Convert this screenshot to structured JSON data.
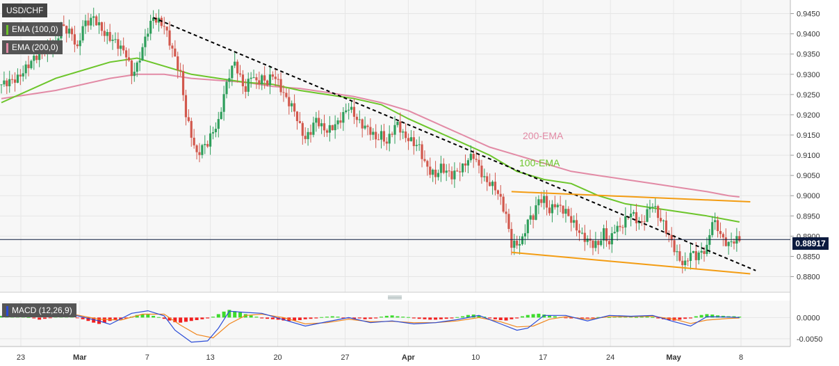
{
  "chart_data": {
    "type": "candlestick",
    "symbol": "USD/CHF",
    "last_price": "0.88917",
    "x_tick_labels": [
      "23",
      "Mar",
      "7",
      "13",
      "20",
      "27",
      "Apr",
      "10",
      "17",
      "24",
      "May",
      "8"
    ],
    "y_ticks": [
      "0.9450",
      "0.9400",
      "0.9350",
      "0.9300",
      "0.9250",
      "0.9200",
      "0.9150",
      "0.9100",
      "0.9050",
      "0.9000",
      "0.8950",
      "0.8900",
      "0.8850",
      "0.8800"
    ],
    "ylim": [
      0.877,
      0.9475
    ],
    "grid": true,
    "indicators": {
      "ema100": {
        "legend": "EMA (100,0)",
        "label": "100-EMA",
        "color": "#6cc52a"
      },
      "ema200": {
        "legend": "EMA (200,0)",
        "label": "200-EMA",
        "color": "#e28aa5"
      }
    },
    "price_path": [
      [
        0,
        0.9275
      ],
      [
        3,
        0.929
      ],
      [
        6,
        0.934
      ],
      [
        8,
        0.936
      ],
      [
        10,
        0.9375
      ],
      [
        11,
        0.942
      ],
      [
        13,
        0.94
      ],
      [
        14,
        0.936
      ],
      [
        15,
        0.942
      ],
      [
        17,
        0.944
      ],
      [
        19,
        0.94
      ],
      [
        21,
        0.938
      ],
      [
        23,
        0.935
      ],
      [
        24,
        0.93
      ],
      [
        25,
        0.932
      ],
      [
        27,
        0.941
      ],
      [
        28,
        0.944
      ],
      [
        30,
        0.942
      ],
      [
        31,
        0.938
      ],
      [
        33,
        0.93
      ],
      [
        34,
        0.92
      ],
      [
        35,
        0.915
      ],
      [
        36,
        0.91
      ],
      [
        37,
        0.912
      ],
      [
        38,
        0.913
      ],
      [
        39,
        0.916
      ],
      [
        40,
        0.918
      ],
      [
        41,
        0.925
      ],
      [
        42,
        0.93
      ],
      [
        43,
        0.933
      ],
      [
        44,
        0.929
      ],
      [
        45,
        0.926
      ],
      [
        46,
        0.93
      ],
      [
        47,
        0.928
      ],
      [
        48,
        0.929
      ],
      [
        49,
        0.928
      ],
      [
        50,
        0.93
      ],
      [
        51,
        0.928
      ],
      [
        52,
        0.925
      ],
      [
        53,
        0.923
      ],
      [
        54,
        0.921
      ],
      [
        55,
        0.917
      ],
      [
        56,
        0.914
      ],
      [
        57,
        0.916
      ],
      [
        58,
        0.919
      ],
      [
        59,
        0.917
      ],
      [
        60,
        0.916
      ],
      [
        61,
        0.917
      ],
      [
        62,
        0.918
      ],
      [
        63,
        0.92
      ],
      [
        64,
        0.922
      ],
      [
        65,
        0.92
      ],
      [
        66,
        0.918
      ],
      [
        67,
        0.917
      ],
      [
        68,
        0.916
      ],
      [
        69,
        0.914
      ],
      [
        70,
        0.915
      ],
      [
        71,
        0.913
      ],
      [
        72,
        0.916
      ],
      [
        73,
        0.918
      ],
      [
        74,
        0.915
      ],
      [
        75,
        0.914
      ],
      [
        76,
        0.913
      ],
      [
        77,
        0.912
      ],
      [
        78,
        0.908
      ],
      [
        79,
        0.906
      ],
      [
        80,
        0.905
      ],
      [
        81,
        0.907
      ],
      [
        82,
        0.906
      ],
      [
        83,
        0.905
      ],
      [
        84,
        0.906
      ],
      [
        85,
        0.907
      ],
      [
        86,
        0.909
      ],
      [
        87,
        0.91
      ],
      [
        88,
        0.907
      ],
      [
        89,
        0.904
      ],
      [
        90,
        0.903
      ],
      [
        91,
        0.902
      ],
      [
        92,
        0.899
      ],
      [
        93,
        0.895
      ],
      [
        94,
        0.888
      ],
      [
        95,
        0.888
      ],
      [
        96,
        0.889
      ],
      [
        97,
        0.894
      ],
      [
        98,
        0.895
      ],
      [
        99,
        0.899
      ],
      [
        100,
        0.899
      ],
      [
        101,
        0.896
      ],
      [
        102,
        0.898
      ],
      [
        103,
        0.897
      ],
      [
        104,
        0.896
      ],
      [
        105,
        0.894
      ],
      [
        106,
        0.892
      ],
      [
        107,
        0.89
      ],
      [
        108,
        0.889
      ],
      [
        109,
        0.888
      ],
      [
        110,
        0.888
      ],
      [
        111,
        0.891
      ],
      [
        112,
        0.888
      ],
      [
        113,
        0.892
      ],
      [
        114,
        0.892
      ],
      [
        115,
        0.894
      ],
      [
        116,
        0.896
      ],
      [
        117,
        0.894
      ],
      [
        118,
        0.893
      ],
      [
        119,
        0.896
      ],
      [
        120,
        0.898
      ],
      [
        121,
        0.895
      ],
      [
        122,
        0.893
      ],
      [
        123,
        0.89
      ],
      [
        124,
        0.887
      ],
      [
        125,
        0.884
      ],
      [
        126,
        0.883
      ],
      [
        127,
        0.886
      ],
      [
        128,
        0.885
      ],
      [
        129,
        0.886
      ],
      [
        130,
        0.887
      ],
      [
        131,
        0.894
      ],
      [
        132,
        0.892
      ],
      [
        133,
        0.889
      ],
      [
        134,
        0.888
      ],
      [
        135,
        0.889
      ],
      [
        136,
        0.8892
      ]
    ],
    "ema100_path": [
      [
        0,
        0.923
      ],
      [
        10,
        0.929
      ],
      [
        20,
        0.933
      ],
      [
        25,
        0.934
      ],
      [
        30,
        0.932
      ],
      [
        35,
        0.93
      ],
      [
        40,
        0.929
      ],
      [
        45,
        0.928
      ],
      [
        50,
        0.9275
      ],
      [
        55,
        0.926
      ],
      [
        60,
        0.925
      ],
      [
        65,
        0.924
      ],
      [
        70,
        0.9225
      ],
      [
        75,
        0.919
      ],
      [
        80,
        0.916
      ],
      [
        85,
        0.913
      ],
      [
        90,
        0.91
      ],
      [
        95,
        0.906
      ],
      [
        100,
        0.904
      ],
      [
        105,
        0.903
      ],
      [
        110,
        0.9
      ],
      [
        115,
        0.898
      ],
      [
        120,
        0.897
      ],
      [
        125,
        0.896
      ],
      [
        130,
        0.895
      ],
      [
        134,
        0.894
      ],
      [
        136,
        0.8935
      ]
    ],
    "ema200_path": [
      [
        0,
        0.924
      ],
      [
        10,
        0.926
      ],
      [
        20,
        0.929
      ],
      [
        25,
        0.93
      ],
      [
        30,
        0.93
      ],
      [
        35,
        0.929
      ],
      [
        40,
        0.9285
      ],
      [
        45,
        0.928
      ],
      [
        50,
        0.927
      ],
      [
        55,
        0.9265
      ],
      [
        60,
        0.9255
      ],
      [
        65,
        0.9245
      ],
      [
        70,
        0.923
      ],
      [
        75,
        0.921
      ],
      [
        80,
        0.918
      ],
      [
        85,
        0.915
      ],
      [
        90,
        0.912
      ],
      [
        95,
        0.91
      ],
      [
        100,
        0.908
      ],
      [
        105,
        0.906
      ],
      [
        110,
        0.905
      ],
      [
        115,
        0.904
      ],
      [
        120,
        0.903
      ],
      [
        125,
        0.902
      ],
      [
        130,
        0.901
      ],
      [
        134,
        0.9
      ],
      [
        136,
        0.8997
      ]
    ],
    "trendlines": [
      {
        "style": "dashed",
        "color": "#000000",
        "from": [
          28,
          0.944
        ],
        "to": [
          139,
          0.8815
        ]
      },
      {
        "style": "solid",
        "color": "#f39c12",
        "from": [
          94,
          0.901
        ],
        "to": [
          138,
          0.8985
        ]
      },
      {
        "style": "solid",
        "color": "#f39c12",
        "from": [
          94,
          0.886
        ],
        "to": [
          138,
          0.8807
        ]
      }
    ],
    "macd": {
      "label": "MACD (12,26,9)",
      "y_ticks": [
        "0.0000",
        "-0.0050"
      ],
      "ylim": [
        -0.0065,
        0.0035
      ],
      "histogram": [
        0.0004,
        0.0008,
        0.001,
        0.0006,
        0.0003,
        0.0001,
        -0.0002,
        -0.0005,
        -0.0003,
        -0.0001,
        0.0002,
        0.0004,
        0.0006,
        0.0002,
        -0.0001,
        -0.0004,
        -0.0008,
        -0.0012,
        -0.0015,
        -0.0012,
        -0.0008,
        -0.0006,
        -0.0004,
        -0.0002,
        0.0002,
        0.0006,
        0.0008,
        0.0007,
        0.0004,
        0.0001,
        -0.0003,
        -0.0007,
        -0.0011,
        -0.0012,
        -0.001,
        -0.0008,
        -0.0006,
        -0.0004,
        -0.0002,
        0.0002,
        0.0008,
        0.0014,
        0.0018,
        0.0015,
        0.0012,
        0.0008,
        0.0005,
        0.0002,
        -0.0002,
        -0.0003,
        -0.0004,
        -0.0005,
        -0.0007,
        -0.0008,
        -0.0007,
        -0.0006,
        -0.0004,
        -0.0003,
        -0.0002,
        0.0001,
        0.0002,
        0.0003,
        0.0002,
        -0.0001,
        -0.0002,
        -0.0003,
        -0.0002,
        -0.0004,
        -0.0003,
        -0.0002,
        0.0002,
        0.0004,
        0.0005,
        0.0003,
        0.0002,
        0.0001,
        -0.0002,
        -0.0003,
        -0.0004,
        -0.0005,
        -0.0005,
        -0.0004,
        -0.0003,
        -0.0002,
        0.0001,
        0.0003,
        0.0006,
        0.0007,
        0.0005,
        0.0002,
        -0.0002,
        -0.0004,
        -0.0006,
        -0.0007,
        -0.0004,
        -0.0002,
        0.0003,
        0.0006,
        0.0008,
        0.0009,
        0.0007,
        0.0005,
        0.0003,
        0.0001,
        -0.0001,
        -0.0002,
        -0.0002,
        -0.0003,
        -0.0002,
        -0.0001,
        0.0001,
        0.0002,
        0.0001,
        0.0002,
        0.0003,
        0.0003,
        0.0002,
        0.0001,
        0.0002,
        0.0003,
        0.0001,
        -0.0002,
        -0.0004,
        -0.0006,
        -0.0007,
        -0.0005,
        -0.0003,
        -0.0002,
        0.0003,
        0.0006,
        0.0008,
        0.0007,
        0.0005,
        0.0004,
        0.0003,
        0.0003,
        0.0002
      ],
      "macd_path": [
        [
          0,
          0.0002
        ],
        [
          6,
          0.001
        ],
        [
          10,
          0.0012
        ],
        [
          14,
          0.0004
        ],
        [
          18,
          -0.0008
        ],
        [
          20,
          -0.0016
        ],
        [
          24,
          0.001
        ],
        [
          27,
          0.0016
        ],
        [
          30,
          0.0004
        ],
        [
          32,
          -0.003
        ],
        [
          35,
          -0.0058
        ],
        [
          38,
          -0.0055
        ],
        [
          40,
          -0.0025
        ],
        [
          42,
          0.0015
        ],
        [
          45,
          0.0012
        ],
        [
          48,
          0.001
        ],
        [
          52,
          -0.0005
        ],
        [
          56,
          -0.002
        ],
        [
          60,
          -0.001
        ],
        [
          64,
          0.0
        ],
        [
          68,
          -0.0012
        ],
        [
          72,
          -0.0008
        ],
        [
          76,
          -0.0015
        ],
        [
          80,
          -0.0012
        ],
        [
          84,
          -0.0005
        ],
        [
          88,
          0.0005
        ],
        [
          92,
          -0.0015
        ],
        [
          95,
          -0.003
        ],
        [
          97,
          -0.0025
        ],
        [
          100,
          0.0005
        ],
        [
          104,
          0.0005
        ],
        [
          108,
          -0.0008
        ],
        [
          112,
          0.0005
        ],
        [
          116,
          0.0003
        ],
        [
          120,
          0.0005
        ],
        [
          124,
          -0.001
        ],
        [
          127,
          -0.002
        ],
        [
          130,
          0.0002
        ],
        [
          134,
          0.0001
        ],
        [
          136,
          0.0
        ]
      ],
      "signal_path": [
        [
          0,
          0.0003
        ],
        [
          6,
          0.0008
        ],
        [
          10,
          0.001
        ],
        [
          14,
          0.0006
        ],
        [
          18,
          -0.0004
        ],
        [
          22,
          -0.0006
        ],
        [
          26,
          0.0008
        ],
        [
          30,
          0.0008
        ],
        [
          33,
          -0.0018
        ],
        [
          36,
          -0.004
        ],
        [
          39,
          -0.0048
        ],
        [
          42,
          -0.0015
        ],
        [
          45,
          0.0005
        ],
        [
          48,
          0.0008
        ],
        [
          52,
          0.0
        ],
        [
          56,
          -0.0015
        ],
        [
          60,
          -0.0012
        ],
        [
          64,
          -0.0004
        ],
        [
          68,
          -0.001
        ],
        [
          72,
          -0.0009
        ],
        [
          76,
          -0.0012
        ],
        [
          80,
          -0.0012
        ],
        [
          84,
          -0.0008
        ],
        [
          88,
          0.0
        ],
        [
          92,
          -0.001
        ],
        [
          95,
          -0.0022
        ],
        [
          98,
          -0.002
        ],
        [
          101,
          -0.0004
        ],
        [
          104,
          0.0002
        ],
        [
          108,
          -0.0004
        ],
        [
          112,
          0.0002
        ],
        [
          116,
          0.0002
        ],
        [
          120,
          0.0003
        ],
        [
          124,
          -0.0004
        ],
        [
          127,
          -0.0014
        ],
        [
          130,
          -0.0006
        ],
        [
          134,
          -0.0002
        ],
        [
          136,
          -0.0001
        ]
      ]
    }
  }
}
